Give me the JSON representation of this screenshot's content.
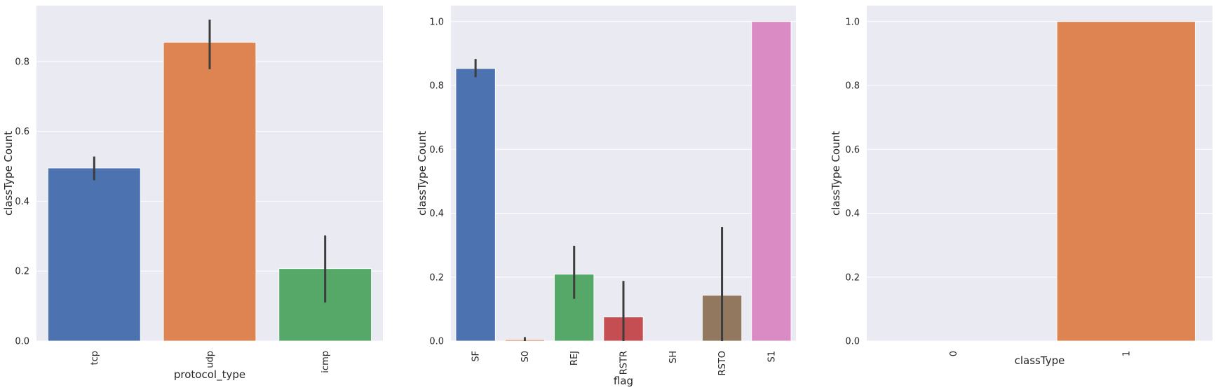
{
  "chart_data": [
    {
      "type": "bar",
      "xlabel": "protocol_type",
      "ylabel": "classType Count",
      "categories": [
        "tcp",
        "udp",
        "icmp"
      ],
      "values": [
        0.495,
        0.855,
        0.207
      ],
      "error_low": [
        0.46,
        0.778,
        0.11
      ],
      "error_high": [
        0.528,
        0.92,
        0.302
      ],
      "colors": [
        "#4c72b0",
        "#dd8452",
        "#55a868"
      ],
      "ylim": [
        0,
        0.96
      ],
      "yticks": [
        "0.0",
        "0.2",
        "0.4",
        "0.6",
        "0.8"
      ],
      "ytick_values": [
        0,
        0.2,
        0.4,
        0.6,
        0.8
      ],
      "grid": true
    },
    {
      "type": "bar",
      "xlabel": "flag",
      "ylabel": "classType Count",
      "categories": [
        "SF",
        "S0",
        "REJ",
        "RSTR",
        "SH",
        "RSTO",
        "S1"
      ],
      "values": [
        0.853,
        0.004,
        0.209,
        0.075,
        0.0,
        0.143,
        1.0
      ],
      "error_low": [
        0.826,
        0.0,
        0.132,
        0.0,
        0.0,
        0.0,
        1.0
      ],
      "error_high": [
        0.883,
        0.012,
        0.298,
        0.188,
        0.0,
        0.357,
        1.0
      ],
      "colors": [
        "#4c72b0",
        "#dd8452",
        "#55a868",
        "#c44e52",
        "#8172b3",
        "#937860",
        "#da8bc3"
      ],
      "ylim": [
        0,
        1.05
      ],
      "yticks": [
        "0.0",
        "0.2",
        "0.4",
        "0.6",
        "0.8",
        "1.0"
      ],
      "ytick_values": [
        0,
        0.2,
        0.4,
        0.6,
        0.8,
        1.0
      ],
      "grid": true
    },
    {
      "type": "bar",
      "xlabel": "classType",
      "ylabel": "classType Count",
      "categories": [
        "0",
        "1"
      ],
      "values": [
        0.0,
        1.0
      ],
      "error_low": [
        0.0,
        1.0
      ],
      "error_high": [
        0.0,
        1.0
      ],
      "colors": [
        "#4c72b0",
        "#dd8452"
      ],
      "ylim": [
        0,
        1.05
      ],
      "yticks": [
        "0.0",
        "0.2",
        "0.4",
        "0.6",
        "0.8",
        "1.0"
      ],
      "ytick_values": [
        0,
        0.2,
        0.4,
        0.6,
        0.8,
        1.0
      ],
      "grid": true
    }
  ]
}
